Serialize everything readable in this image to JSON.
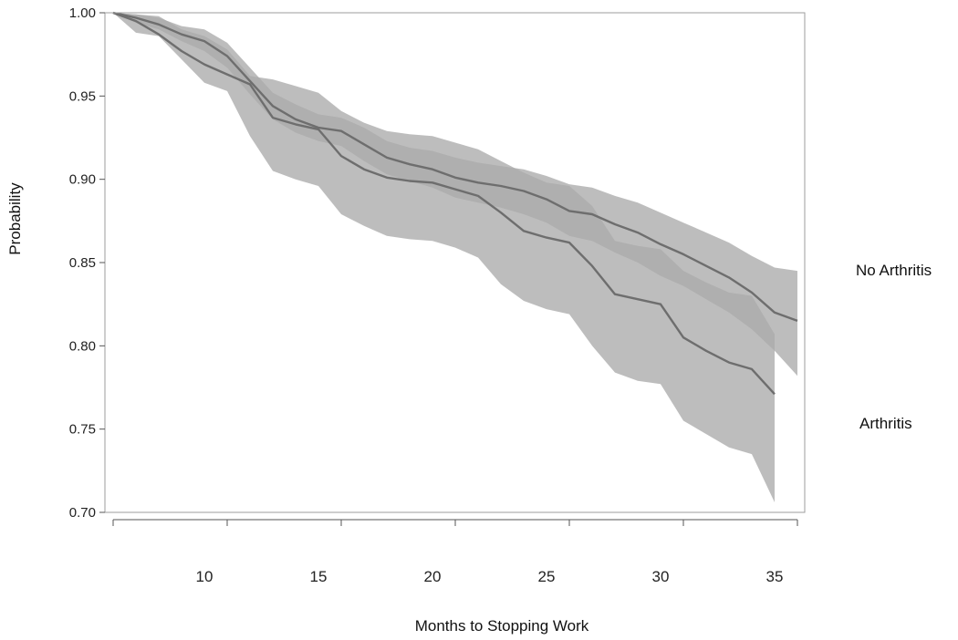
{
  "chart_data": {
    "type": "line",
    "title": "",
    "xlabel": "Months to Stopping Work",
    "ylabel": "Probability",
    "xlim": [
      6,
      36
    ],
    "ylim": [
      0.7,
      1.0
    ],
    "y_ticks": [
      0.7,
      0.75,
      0.8,
      0.85,
      0.9,
      0.95,
      1.0
    ],
    "y_tick_labels": [
      "0.70",
      "0.75",
      "0.80",
      "0.85",
      "0.90",
      "0.95",
      "1.00"
    ],
    "x_tick_positions": [
      6,
      11,
      16,
      21,
      26,
      31,
      36
    ],
    "x_tick_labels": [
      {
        "x": 10,
        "label": "10"
      },
      {
        "x": 15,
        "label": "15"
      },
      {
        "x": 20,
        "label": "20"
      },
      {
        "x": 25,
        "label": "25"
      },
      {
        "x": 30,
        "label": "30"
      },
      {
        "x": 35,
        "label": "35"
      }
    ],
    "grid": false,
    "colors": {
      "line": "#6e6e6e",
      "band": "#aaaaaa",
      "frame": "#9e9e9e",
      "axis": "#555555"
    },
    "series": [
      {
        "name": "No Arthritis",
        "x": [
          6,
          7,
          8,
          9,
          10,
          11,
          12,
          13,
          14,
          15,
          16,
          17,
          18,
          19,
          20,
          21,
          22,
          23,
          24,
          25,
          26,
          27,
          28,
          29,
          30,
          31,
          32,
          33,
          34,
          35,
          36
        ],
        "y": [
          1.0,
          0.997,
          0.993,
          0.987,
          0.983,
          0.974,
          0.959,
          0.944,
          0.936,
          0.931,
          0.929,
          0.921,
          0.913,
          0.909,
          0.906,
          0.901,
          0.898,
          0.896,
          0.893,
          0.888,
          0.881,
          0.879,
          0.873,
          0.868,
          0.861,
          0.855,
          0.848,
          0.841,
          0.832,
          0.82,
          0.815
        ],
        "lower": [
          1.0,
          0.994,
          0.99,
          0.983,
          0.977,
          0.967,
          0.951,
          0.936,
          0.928,
          0.923,
          0.92,
          0.911,
          0.903,
          0.899,
          0.895,
          0.889,
          0.886,
          0.883,
          0.879,
          0.874,
          0.866,
          0.863,
          0.856,
          0.85,
          0.842,
          0.836,
          0.828,
          0.82,
          0.81,
          0.797,
          0.782
        ],
        "upper": [
          1.0,
          0.999,
          0.997,
          0.992,
          0.99,
          0.982,
          0.967,
          0.952,
          0.945,
          0.939,
          0.937,
          0.931,
          0.923,
          0.919,
          0.917,
          0.913,
          0.91,
          0.908,
          0.906,
          0.902,
          0.897,
          0.895,
          0.89,
          0.886,
          0.88,
          0.874,
          0.868,
          0.862,
          0.854,
          0.847,
          0.845
        ]
      },
      {
        "name": "Arthritis",
        "x": [
          6,
          7,
          8,
          9,
          10,
          11,
          12,
          13,
          14,
          15,
          16,
          17,
          18,
          19,
          20,
          21,
          22,
          23,
          24,
          25,
          26,
          27,
          28,
          29,
          30,
          31,
          32,
          33,
          34,
          35
        ],
        "y": [
          1.0,
          0.995,
          0.987,
          0.977,
          0.969,
          0.963,
          0.957,
          0.937,
          0.933,
          0.93,
          0.914,
          0.906,
          0.901,
          0.899,
          0.898,
          0.894,
          0.89,
          0.88,
          0.869,
          0.865,
          0.862,
          0.848,
          0.831,
          0.828,
          0.825,
          0.805,
          0.797,
          0.79,
          0.786,
          0.771
        ],
        "lower": [
          1.0,
          0.988,
          0.986,
          0.972,
          0.958,
          0.953,
          0.926,
          0.905,
          0.9,
          0.896,
          0.879,
          0.872,
          0.866,
          0.864,
          0.863,
          0.859,
          0.853,
          0.837,
          0.827,
          0.822,
          0.819,
          0.8,
          0.784,
          0.779,
          0.777,
          0.755,
          0.747,
          0.739,
          0.735,
          0.706
        ],
        "upper": [
          1.0,
          0.999,
          0.998,
          0.99,
          0.986,
          0.978,
          0.962,
          0.96,
          0.956,
          0.952,
          0.941,
          0.934,
          0.929,
          0.927,
          0.926,
          0.922,
          0.918,
          0.911,
          0.904,
          0.898,
          0.896,
          0.884,
          0.863,
          0.86,
          0.858,
          0.845,
          0.838,
          0.832,
          0.83,
          0.807
        ]
      }
    ]
  }
}
